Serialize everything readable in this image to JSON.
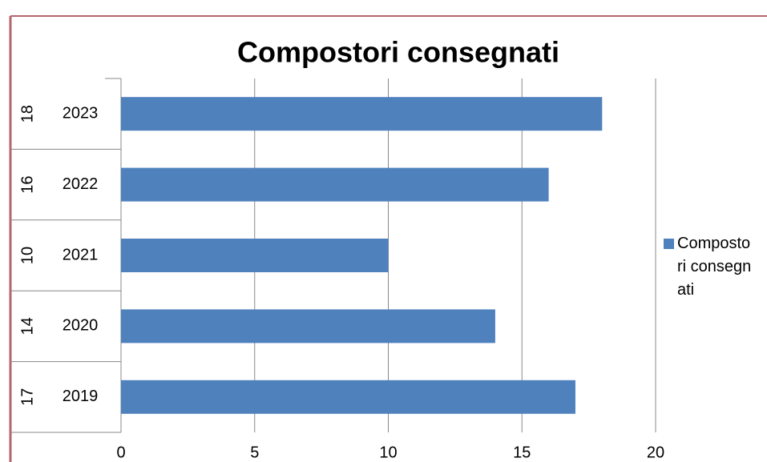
{
  "chart_data": {
    "type": "bar",
    "orientation": "horizontal",
    "title": "Compostori consegnati",
    "categories": [
      "2019",
      "2020",
      "2021",
      "2022",
      "2023"
    ],
    "category_groups": [
      "17",
      "14",
      "10",
      "16",
      "18"
    ],
    "series": [
      {
        "name": "Compostori consegnati",
        "color": "#4f81bd",
        "values": [
          17,
          14,
          10,
          16,
          18
        ]
      }
    ],
    "xlim": [
      0,
      20
    ],
    "xticks": [
      0,
      5,
      10,
      15,
      20
    ],
    "grid": true,
    "legend": "right"
  }
}
